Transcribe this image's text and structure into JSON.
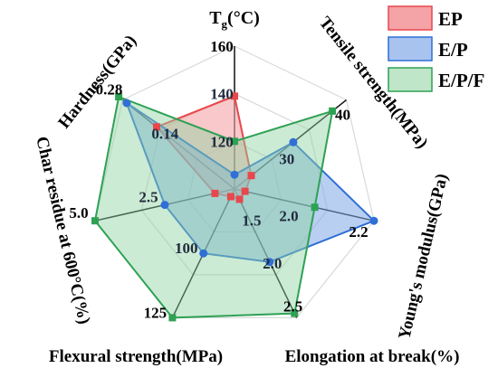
{
  "chart_data": {
    "type": "radar",
    "title": "",
    "axes": [
      {
        "key": "tg",
        "label": "T",
        "subscript": "g",
        "label_suffix": "(°C)",
        "min": 100,
        "max": 160,
        "tick_values": [
          120,
          140,
          160
        ],
        "tick_labels": [
          "120",
          "140",
          "160"
        ]
      },
      {
        "key": "tensile",
        "label": "Tensile strength(MPa)",
        "min": 20,
        "max": 40,
        "tick_values": [
          30,
          40
        ],
        "tick_labels": [
          "30",
          "40"
        ]
      },
      {
        "key": "youngs",
        "label": "Young's modulus(GPa)",
        "min": 1.8,
        "max": 2.2,
        "tick_values": [
          2.0,
          2.2
        ],
        "tick_labels": [
          "2.0",
          "2.2"
        ]
      },
      {
        "key": "elongation",
        "label": "Elongation at break(%)",
        "min": 1.0,
        "max": 2.5,
        "tick_values": [
          1.5,
          2.0,
          2.5
        ],
        "tick_labels": [
          "1.5",
          "2.0",
          "2.5"
        ]
      },
      {
        "key": "flexural",
        "label": "Flexural strength(MPa)",
        "min": 75,
        "max": 125,
        "tick_values": [
          100,
          125
        ],
        "tick_labels": [
          "100",
          "125"
        ]
      },
      {
        "key": "char",
        "label": "Char residue at 600°C(%)",
        "min": 0,
        "max": 5.0,
        "tick_values": [
          2.5,
          5.0
        ],
        "tick_labels": [
          "2.5",
          "5.0"
        ]
      },
      {
        "key": "hardness",
        "label": "Hardness(GPa)",
        "min": 0,
        "max": 0.28,
        "tick_values": [
          0.14,
          0.28
        ],
        "tick_labels": [
          "0.14",
          "0.28"
        ]
      }
    ],
    "series": [
      {
        "name": "EP",
        "values": [
          139,
          23.0,
          1.83,
          1.12,
          78,
          0.7,
          0.195
        ],
        "line_color": "#e8474c",
        "fill_color": "#f4a3a6",
        "fill_opacity": 0.6,
        "marker": "square"
      },
      {
        "name": "E/P",
        "values": [
          106,
          30.5,
          2.2,
          1.85,
          100,
          2.5,
          0.27
        ],
        "line_color": "#2f6fd6",
        "fill_color": "#7fa8e8",
        "fill_opacity": 0.55,
        "marker": "circle"
      },
      {
        "name": "E/P/F",
        "values": [
          120,
          37.5,
          2.03,
          2.45,
          125,
          5.0,
          0.29
        ],
        "line_color": "#2ea154",
        "fill_color": "#8fd3a0",
        "fill_opacity": 0.45,
        "marker": "square"
      }
    ],
    "legend_position": "top-right",
    "grid": true,
    "grid_shape": "heptagon"
  }
}
